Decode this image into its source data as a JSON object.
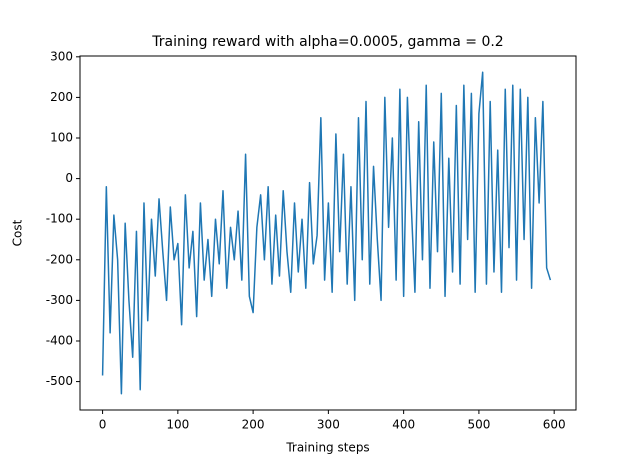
{
  "chart_data": {
    "type": "line",
    "title": "Training reward with alpha=0.0005, gamma = 0.2",
    "x_label": "Training steps",
    "y_label": "Cost",
    "color": "#1f77b4",
    "grid": false,
    "x": [
      0,
      5,
      10,
      15,
      20,
      25,
      30,
      35,
      40,
      45,
      50,
      55,
      60,
      65,
      70,
      75,
      80,
      85,
      90,
      95,
      100,
      105,
      110,
      115,
      120,
      125,
      130,
      135,
      140,
      145,
      150,
      155,
      160,
      165,
      170,
      175,
      180,
      185,
      190,
      195,
      200,
      205,
      210,
      215,
      220,
      225,
      230,
      235,
      240,
      245,
      250,
      255,
      260,
      265,
      270,
      275,
      280,
      285,
      290,
      295,
      300,
      305,
      310,
      315,
      320,
      325,
      330,
      335,
      340,
      345,
      350,
      355,
      360,
      365,
      370,
      375,
      380,
      385,
      390,
      395,
      400,
      405,
      410,
      415,
      420,
      425,
      430,
      435,
      440,
      445,
      450,
      455,
      460,
      465,
      470,
      475,
      480,
      485,
      490,
      495,
      500,
      505,
      510,
      515,
      520,
      525,
      530,
      535,
      540,
      545,
      550,
      555,
      560,
      565,
      570,
      575,
      580,
      585,
      590,
      595
    ],
    "values": [
      -485,
      -20,
      -380,
      -90,
      -200,
      -530,
      -110,
      -300,
      -440,
      -130,
      -520,
      -60,
      -350,
      -100,
      -240,
      -50,
      -180,
      -300,
      -70,
      -200,
      -160,
      -360,
      -40,
      -220,
      -130,
      -340,
      -60,
      -250,
      -150,
      -290,
      -100,
      -210,
      -30,
      -270,
      -120,
      -200,
      -80,
      -250,
      60,
      -290,
      -330,
      -120,
      -40,
      -200,
      -20,
      -260,
      -90,
      -240,
      -30,
      -180,
      -280,
      -60,
      -230,
      -100,
      -270,
      -10,
      -210,
      -140,
      150,
      -250,
      -60,
      -280,
      110,
      -180,
      60,
      -260,
      -20,
      -300,
      150,
      -200,
      190,
      -260,
      30,
      -150,
      -300,
      200,
      -120,
      100,
      -250,
      220,
      -290,
      200,
      -60,
      -280,
      140,
      -200,
      230,
      -270,
      90,
      -180,
      210,
      -290,
      50,
      -230,
      180,
      -260,
      230,
      -150,
      210,
      -280,
      160,
      262,
      -260,
      190,
      -230,
      70,
      -280,
      220,
      -170,
      230,
      -250,
      220,
      -150,
      200,
      -270,
      150,
      -60,
      190,
      -220,
      -250
    ],
    "xlim": [
      -30,
      629
    ],
    "ylim": [
      -570,
      302
    ],
    "xticks": [
      0,
      100,
      200,
      300,
      400,
      500,
      600
    ],
    "yticks": [
      -500,
      -400,
      -300,
      -200,
      -100,
      0,
      100,
      200,
      300
    ]
  }
}
